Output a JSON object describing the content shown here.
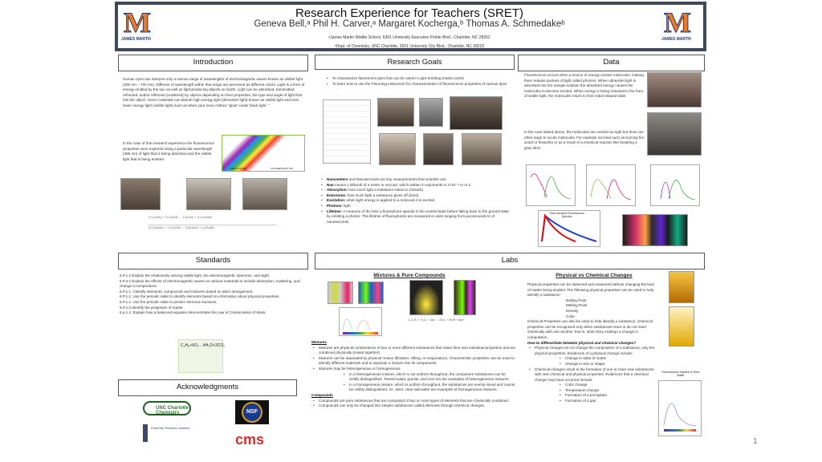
{
  "header": {
    "title": "Research Experience for Teachers (SRET)",
    "authors": "Geneva Bell,ᵃ Phil H. Carver,ᵃ Margaret Kocherga,ᵇ Thomas A. Schmedakeᵇ",
    "affil_a": "ᵃJames Martin Middle School, 6301 University Executive Pointe Blvd., Charlotte, NC 28262",
    "affil_b": "ᵇDept. of Chemistry, UNC Charlotte, 9201 University City Blvd., Charlotte, NC 28223",
    "logo_text": "JAMES MARTIN"
  },
  "intro": {
    "title": "Introduction",
    "p1": "Human eyes can interpret only a narrow range of wavelengths of electromagnetic waves known as visible light (390 nm – 700 nm). Different of wavelength within that range are perceived as different colors. Light is a form of energy emitted by the sun as well as light-producing objects on Earth. Light can be absorbed, transmitted, refracted, and/or reflected (scattered) by objects depending on their properties, the type and angle of light that hits the object. Some materials can absorb high energy light (ultraviolet light) known as visible light and emit lower energy light (visible light) such as when your neon clothes \"glow\" under black light. \"",
    "p2": "In the case of this research experience the fluorescence properties were explored using a particular wavelength (365 nm) of light that is being absorbed and the visible light that is being emitted.",
    "ink_labels": [
      "REGULAR INK",
      "FLUORESCENT INK"
    ]
  },
  "goals": {
    "title": "Research Goals",
    "items": [
      "To characterize fluorescent dyes that can be used in Light Emitting Diodes (LED)",
      "To learn how to use the Flourolog instrument for characterization of fluorescence properties of various dyes"
    ],
    "terms": [
      {
        "b": "Nanometers",
        "t": " and Nanoseconds are tiny measurements that scientist use."
      },
      {
        "b": "Nao",
        "t": " means 1 billionth of a meter or second, which written in exponents is 1×10⁻⁹ m or s."
      },
      {
        "b": "Absorption:",
        "t": " how much light a substance takes in (Absorb)"
      },
      {
        "b": "Emissions:",
        "t": " how much light a substance gives off (Emit)"
      },
      {
        "b": "Excitation:",
        "t": " when light energy is applied to a molecule it is excited"
      },
      {
        "b": "Photons:",
        "t": " light"
      },
      {
        "b": "Lifetime:",
        "t": " A measure of the time a fluorophore spends in the excited state before falling back to the ground state by emitting a photon. The lifetime of fluorophores are measured in units ranging from picoseconds to of nanoseconds."
      }
    ]
  },
  "data": {
    "title": "Data",
    "p1": "Fluorescence occurs when a source of energy excites molecules, making them release packets of light called photons. When ultraviolet light is absorbed into the sample solution the absorbed energy causes the molecules to become excited. When energy is being released in the form of visible light, the molecules return to their initial relaxed state.",
    "p2": "In the case stated above, the molecules are excited via light but there are other ways to excite molecules. For example via heat such as burning fire wood or fireworks or as a result of a chemical reaction like breaking a glow stick.",
    "trf_title": "Time-resolved Fluorescence Spectra"
  },
  "standards": {
    "title": "Standards",
    "text": "6.P.1.2 Explain the relationship among visible light, the electromagnetic spectrum, and sight.\n6.P.3.2 Explain the effects of electromagnetic waves on various materials to include absorption, scattering, and change in temperature.\n8.P.1.1. Classify elements, compounds and mixtures based on atom arrangement.\n8.P.1.2. Use the periodic table to identify elements based on information about physical properties.\n8.P.1.2. Use the periodic table to predict chemical reactions.\n8.P.1.3 Identify the properties of matter.\n8.p.1.4. Explain how a balanced equation demonstrates the Law of Conservation of Mass.",
    "equation": "C₃H₈+5O₂→4H₂O+3CO₂"
  },
  "ack": {
    "title": "Acknowledgments",
    "logos": [
      "UNC Charlotte Chemistry",
      "NSF",
      "Charlotte Teachers Institute",
      "cms"
    ]
  },
  "labs": {
    "title": "Labs",
    "mix_title": "Mixtures & Pure Compounds",
    "mixtures_h": "Mixtures",
    "mixtures": [
      "Mixtures are physical combinations of two or more different substances that retain their own individual properties and are combined physically (mixed together).",
      "Mixtures can be separated by physical means (filtration, sifting, or evaporation). Characteristic properties can be used to identify different materials and to separate a mixture into its components.",
      "Mixtures may be heterogeneous or homogeneous."
    ],
    "mixtures_sub": [
      "In a heterogeneous mixture, which is not uniform throughout, the component substances can be visibly distinguished. Tossed salad, granite, and iced tea are examples of heterogeneous mixtures.",
      "In a homogeneous mixture, which is uniform throughout, the substances are evenly mixed and cannot be visibly distinguished. Air, steel, clear salt-water are examples of homogeneous mixtures."
    ],
    "compounds_h": "Compounds",
    "compounds": [
      "Compounds are pure substances that are composed of two or more types of elements that are chemically combined.",
      "Compounds can only be changed into simpler substances called elements through chemical changes."
    ],
    "pc_title": "Physical vs Chemical Changes",
    "pc_p1": "Physical properties can be observed and measured without changing the kind of matter being studied. The following physical properties can be used to help identify a substance:",
    "pc_props": [
      "Boiling Point",
      "Melting Point",
      "Density",
      "Color"
    ],
    "pc_p2": "Chemical Properties can also be used to help identify a substance. Chemical properties can be recognized only when substances react or do not react chemically with one another, that is, when they undergo a change in composition.",
    "pc_q": "How to differentiate between physical and chemical changes?",
    "pc_phys": "Physical changes do not change the composition of a substance, only the physical properties. Evidences of a physical change include:",
    "pc_phys_sub": [
      "Change in state of matter",
      "Change in size or shape"
    ],
    "pc_chem": "Chemical changes result in the formation of one or more new substances with new chemical and physical properties. Evidences that a chemical change may have occurred include:",
    "pc_chem_sub": [
      "Color change",
      "Temperature change",
      "Formation of a precipitate",
      "Formation of a gas"
    ],
    "tonic_label": "Fluorescence Spectra of Tonic Water"
  },
  "page_number": "1"
}
